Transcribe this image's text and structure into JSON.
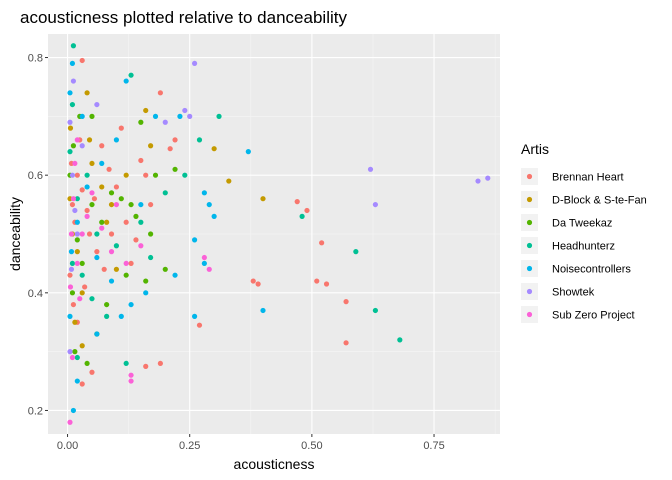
{
  "chart_data": {
    "type": "scatter",
    "title": "acousticness plotted relative to danceability",
    "xlabel": "acousticness",
    "ylabel": "danceability",
    "xlim": [
      -0.04,
      0.885
    ],
    "ylim": [
      0.16,
      0.84
    ],
    "x_ticks": [
      {
        "value": 0.0,
        "label": "0.00"
      },
      {
        "value": 0.25,
        "label": "0.25"
      },
      {
        "value": 0.5,
        "label": "0.50"
      },
      {
        "value": 0.75,
        "label": "0.75"
      }
    ],
    "y_ticks": [
      {
        "value": 0.2,
        "label": "0.2"
      },
      {
        "value": 0.4,
        "label": "0.4"
      },
      {
        "value": 0.6,
        "label": "0.6"
      },
      {
        "value": 0.8,
        "label": "0.8"
      }
    ],
    "grid": true,
    "background": "#ebebeb",
    "legend": {
      "title": "Artis",
      "position": "right"
    },
    "series": [
      {
        "name": "Brennan Heart",
        "color": "#F8766D",
        "points": [
          [
            0.03,
            0.795
          ],
          [
            0.19,
            0.74
          ],
          [
            0.22,
            0.66
          ],
          [
            0.21,
            0.645
          ],
          [
            0.15,
            0.625
          ],
          [
            0.47,
            0.555
          ],
          [
            0.49,
            0.54
          ],
          [
            0.52,
            0.485
          ],
          [
            0.38,
            0.42
          ],
          [
            0.39,
            0.415
          ],
          [
            0.51,
            0.42
          ],
          [
            0.53,
            0.415
          ],
          [
            0.57,
            0.385
          ],
          [
            0.57,
            0.315
          ],
          [
            0.27,
            0.345
          ],
          [
            0.19,
            0.28
          ],
          [
            0.16,
            0.275
          ],
          [
            0.05,
            0.265
          ],
          [
            0.03,
            0.245
          ],
          [
            0.01,
            0.55
          ],
          [
            0.015,
            0.52
          ],
          [
            0.02,
            0.6
          ],
          [
            0.03,
            0.575
          ],
          [
            0.045,
            0.5
          ],
          [
            0.06,
            0.47
          ],
          [
            0.075,
            0.44
          ],
          [
            0.09,
            0.5
          ],
          [
            0.1,
            0.58
          ],
          [
            0.12,
            0.52
          ],
          [
            0.14,
            0.49
          ],
          [
            0.17,
            0.55
          ],
          [
            0.005,
            0.43
          ],
          [
            0.012,
            0.38
          ],
          [
            0.02,
            0.35
          ],
          [
            0.035,
            0.41
          ],
          [
            0.07,
            0.65
          ],
          [
            0.085,
            0.61
          ],
          [
            0.11,
            0.68
          ],
          [
            0.13,
            0.45
          ],
          [
            0.16,
            0.6
          ],
          [
            0.04,
            0.54
          ],
          [
            0.055,
            0.56
          ],
          [
            0.008,
            0.62
          ],
          [
            0.025,
            0.66
          ]
        ]
      },
      {
        "name": "D-Block & S-te-Fan",
        "color": "#C49A00",
        "points": [
          [
            0.04,
            0.74
          ],
          [
            0.16,
            0.71
          ],
          [
            0.3,
            0.645
          ],
          [
            0.33,
            0.59
          ],
          [
            0.4,
            0.56
          ],
          [
            0.17,
            0.65
          ],
          [
            0.12,
            0.6
          ],
          [
            0.09,
            0.55
          ],
          [
            0.005,
            0.56
          ],
          [
            0.01,
            0.5
          ],
          [
            0.02,
            0.47
          ],
          [
            0.03,
            0.4
          ],
          [
            0.05,
            0.62
          ],
          [
            0.07,
            0.58
          ],
          [
            0.08,
            0.52
          ],
          [
            0.1,
            0.44
          ],
          [
            0.015,
            0.35
          ],
          [
            0.03,
            0.31
          ],
          [
            0.006,
            0.68
          ],
          [
            0.045,
            0.66
          ]
        ]
      },
      {
        "name": "Da Tweekaz",
        "color": "#53B400",
        "points": [
          [
            0.05,
            0.7
          ],
          [
            0.15,
            0.69
          ],
          [
            0.18,
            0.6
          ],
          [
            0.22,
            0.61
          ],
          [
            0.11,
            0.56
          ],
          [
            0.14,
            0.53
          ],
          [
            0.12,
            0.43
          ],
          [
            0.16,
            0.42
          ],
          [
            0.02,
            0.49
          ],
          [
            0.03,
            0.45
          ],
          [
            0.05,
            0.55
          ],
          [
            0.07,
            0.52
          ],
          [
            0.09,
            0.57
          ],
          [
            0.13,
            0.55
          ],
          [
            0.005,
            0.6
          ],
          [
            0.01,
            0.4
          ],
          [
            0.015,
            0.3
          ],
          [
            0.04,
            0.28
          ],
          [
            0.06,
            0.33
          ],
          [
            0.08,
            0.38
          ],
          [
            0.17,
            0.5
          ],
          [
            0.2,
            0.44
          ],
          [
            0.012,
            0.65
          ],
          [
            0.025,
            0.7
          ]
        ]
      },
      {
        "name": "Headhunterz",
        "color": "#00C094",
        "points": [
          [
            0.012,
            0.82
          ],
          [
            0.13,
            0.77
          ],
          [
            0.27,
            0.66
          ],
          [
            0.31,
            0.7
          ],
          [
            0.48,
            0.53
          ],
          [
            0.59,
            0.47
          ],
          [
            0.63,
            0.37
          ],
          [
            0.68,
            0.32
          ],
          [
            0.24,
            0.6
          ],
          [
            0.2,
            0.57
          ],
          [
            0.17,
            0.46
          ],
          [
            0.1,
            0.48
          ],
          [
            0.06,
            0.5
          ],
          [
            0.02,
            0.56
          ],
          [
            0.005,
            0.64
          ],
          [
            0.01,
            0.45
          ],
          [
            0.03,
            0.43
          ],
          [
            0.05,
            0.39
          ],
          [
            0.08,
            0.36
          ],
          [
            0.12,
            0.28
          ],
          [
            0.15,
            0.52
          ],
          [
            0.01,
            0.72
          ],
          [
            0.02,
            0.29
          ],
          [
            0.04,
            0.6
          ]
        ]
      },
      {
        "name": "Noisecontrollers",
        "color": "#00B6EB",
        "points": [
          [
            0.01,
            0.79
          ],
          [
            0.12,
            0.76
          ],
          [
            0.18,
            0.7
          ],
          [
            0.23,
            0.7
          ],
          [
            0.28,
            0.57
          ],
          [
            0.29,
            0.55
          ],
          [
            0.3,
            0.53
          ],
          [
            0.26,
            0.49
          ],
          [
            0.28,
            0.45
          ],
          [
            0.22,
            0.43
          ],
          [
            0.37,
            0.64
          ],
          [
            0.4,
            0.37
          ],
          [
            0.26,
            0.36
          ],
          [
            0.16,
            0.4
          ],
          [
            0.13,
            0.38
          ],
          [
            0.11,
            0.36
          ],
          [
            0.06,
            0.33
          ],
          [
            0.02,
            0.25
          ],
          [
            0.012,
            0.2
          ],
          [
            0.005,
            0.36
          ],
          [
            0.008,
            0.47
          ],
          [
            0.02,
            0.52
          ],
          [
            0.04,
            0.58
          ],
          [
            0.07,
            0.62
          ],
          [
            0.1,
            0.66
          ],
          [
            0.15,
            0.55
          ],
          [
            0.005,
            0.74
          ],
          [
            0.03,
            0.7
          ],
          [
            0.06,
            0.46
          ],
          [
            0.09,
            0.42
          ]
        ]
      },
      {
        "name": "Showtek",
        "color": "#A58AFF",
        "points": [
          [
            0.26,
            0.79
          ],
          [
            0.25,
            0.7
          ],
          [
            0.24,
            0.71
          ],
          [
            0.2,
            0.69
          ],
          [
            0.62,
            0.61
          ],
          [
            0.63,
            0.55
          ],
          [
            0.84,
            0.59
          ],
          [
            0.86,
            0.595
          ],
          [
            0.005,
            0.69
          ],
          [
            0.01,
            0.6
          ],
          [
            0.015,
            0.54
          ],
          [
            0.02,
            0.5
          ],
          [
            0.008,
            0.44
          ],
          [
            0.03,
            0.65
          ],
          [
            0.005,
            0.3
          ],
          [
            0.06,
            0.72
          ],
          [
            0.012,
            0.76
          ]
        ]
      },
      {
        "name": "Sub Zero Project",
        "color": "#FB61D7",
        "points": [
          [
            0.12,
            0.45
          ],
          [
            0.15,
            0.48
          ],
          [
            0.28,
            0.46
          ],
          [
            0.29,
            0.44
          ],
          [
            0.13,
            0.26
          ],
          [
            0.13,
            0.25
          ],
          [
            0.005,
            0.18
          ],
          [
            0.01,
            0.29
          ],
          [
            0.02,
            0.45
          ],
          [
            0.03,
            0.5
          ],
          [
            0.04,
            0.53
          ],
          [
            0.05,
            0.57
          ],
          [
            0.07,
            0.51
          ],
          [
            0.09,
            0.47
          ],
          [
            0.1,
            0.55
          ],
          [
            0.008,
            0.5
          ],
          [
            0.012,
            0.56
          ],
          [
            0.015,
            0.62
          ],
          [
            0.02,
            0.66
          ],
          [
            0.006,
            0.41
          ],
          [
            0.025,
            0.39
          ]
        ]
      }
    ]
  }
}
